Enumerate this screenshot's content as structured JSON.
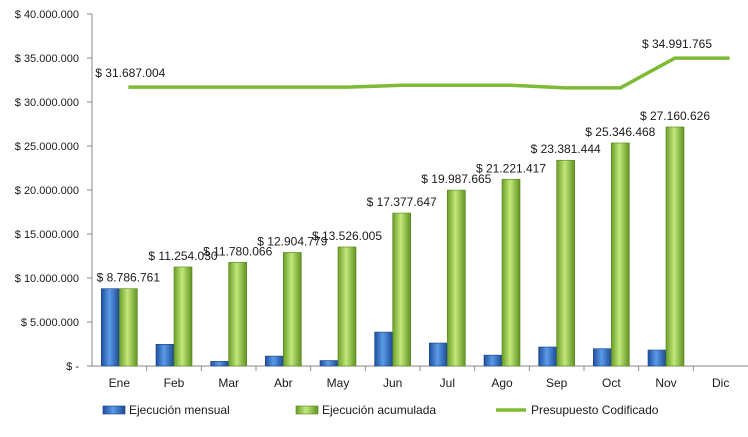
{
  "chart_data": {
    "type": "bar",
    "categories": [
      "Ene",
      "Feb",
      "Mar",
      "Abr",
      "May",
      "Jun",
      "Jul",
      "Ago",
      "Sep",
      "Oct",
      "Nov",
      "Dic"
    ],
    "ylim": [
      0,
      40000000
    ],
    "y_ticks": [
      {
        "value": 0,
        "label": "$ -"
      },
      {
        "value": 5000000,
        "label": "$ 5.000.000"
      },
      {
        "value": 10000000,
        "label": "$ 10.000.000"
      },
      {
        "value": 15000000,
        "label": "$ 15.000.000"
      },
      {
        "value": 20000000,
        "label": "$ 20.000.000"
      },
      {
        "value": 25000000,
        "label": "$ 25.000.000"
      },
      {
        "value": 30000000,
        "label": "$ 30.000.000"
      },
      {
        "value": 35000000,
        "label": "$ 35.000.000"
      },
      {
        "value": 40000000,
        "label": "$ 40.000.000"
      }
    ],
    "grid": false,
    "legend_position": "bottom",
    "series": [
      {
        "name": "Ejecución mensual",
        "type": "bar",
        "color": "#2e6fcf",
        "values": [
          8786761,
          2467269,
          526036,
          1124713,
          621226,
          3851642,
          2610018,
          1233752,
          2160027,
          1965024,
          1814158,
          null
        ]
      },
      {
        "name": "Ejecución acumulada",
        "type": "bar",
        "color": "#8cc63f",
        "values": [
          8786761,
          11254030,
          11780066,
          12904779,
          13526005,
          17377647,
          19987665,
          21221417,
          23381444,
          25346468,
          27160626,
          null
        ],
        "data_labels": [
          "$ 8.786.761",
          "$ 11.254.030",
          "$ 11.780.066",
          "$ 12.904.779",
          "$ 13.526.005",
          "$ 17.377.647",
          "$ 19.987.665",
          "$ 21.221.417",
          "$ 23.381.444",
          "$ 25.346.468",
          "$ 27.160.626",
          ""
        ]
      },
      {
        "name": "Presupuesto Codificado",
        "type": "line",
        "color": "#7dbb35",
        "values": [
          31687004,
          31687004,
          31687004,
          31687004,
          31687004,
          31900000,
          31900000,
          31900000,
          31600000,
          31600000,
          34991765,
          34991765
        ],
        "data_labels": [
          {
            "index": 0,
            "text": "$ 31.687.004"
          },
          {
            "index": 10,
            "text": "$ 34.991.765"
          }
        ]
      }
    ]
  }
}
